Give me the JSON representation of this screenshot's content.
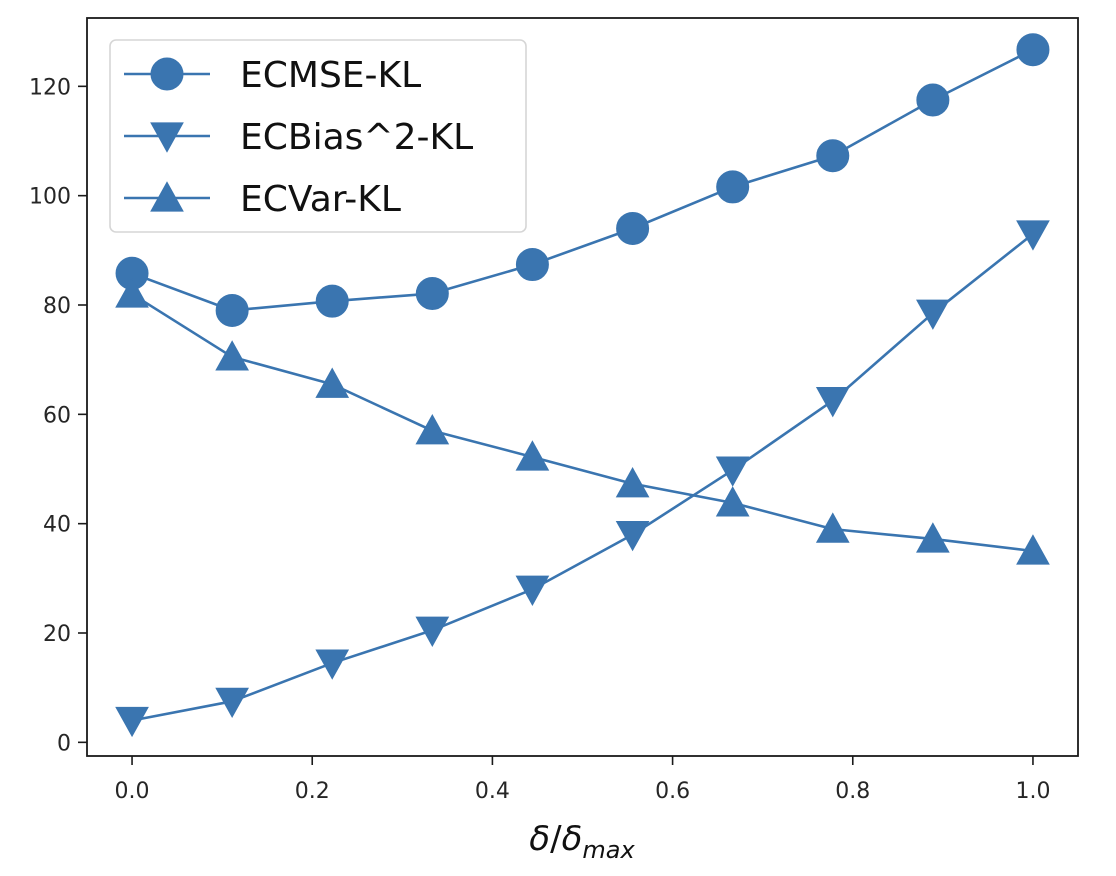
{
  "chart_data": {
    "type": "line",
    "title": "",
    "xlabel_parts": {
      "numerator": "δ",
      "slash": "/",
      "denominator": "δ",
      "denominator_subscript": "max"
    },
    "ylabel": "",
    "xlim": [
      -0.05,
      1.05
    ],
    "ylim": [
      -2.5,
      132.5
    ],
    "x_ticks": [
      0.0,
      0.2,
      0.4,
      0.6,
      0.8,
      1.0
    ],
    "x_tick_labels": [
      "0.0",
      "0.2",
      "0.4",
      "0.6",
      "0.8",
      "1.0"
    ],
    "y_ticks": [
      0,
      20,
      40,
      60,
      80,
      100,
      120
    ],
    "y_tick_labels": [
      "0",
      "20",
      "40",
      "60",
      "80",
      "100",
      "120"
    ],
    "grid": false,
    "legend_position": "upper-left",
    "line_color": "#3a75b0",
    "x": [
      0.0,
      0.1111,
      0.2222,
      0.3333,
      0.4444,
      0.5556,
      0.6667,
      0.7778,
      0.8889,
      1.0
    ],
    "series": [
      {
        "name": "ECMSE-KL",
        "marker": "circle",
        "values": [
          85.8,
          79.0,
          80.7,
          82.1,
          87.4,
          94.0,
          101.6,
          107.3,
          117.5,
          126.7
        ]
      },
      {
        "name": "ECBias^2-KL",
        "marker": "triangle-down",
        "values": [
          4.0,
          7.5,
          14.5,
          20.5,
          28.0,
          38.0,
          49.8,
          62.5,
          78.5,
          93.0
        ]
      },
      {
        "name": "ECVar-KL",
        "marker": "triangle-up",
        "values": [
          82.0,
          70.5,
          65.5,
          57.0,
          52.2,
          47.3,
          43.8,
          39.0,
          37.2,
          35.0
        ]
      }
    ]
  }
}
